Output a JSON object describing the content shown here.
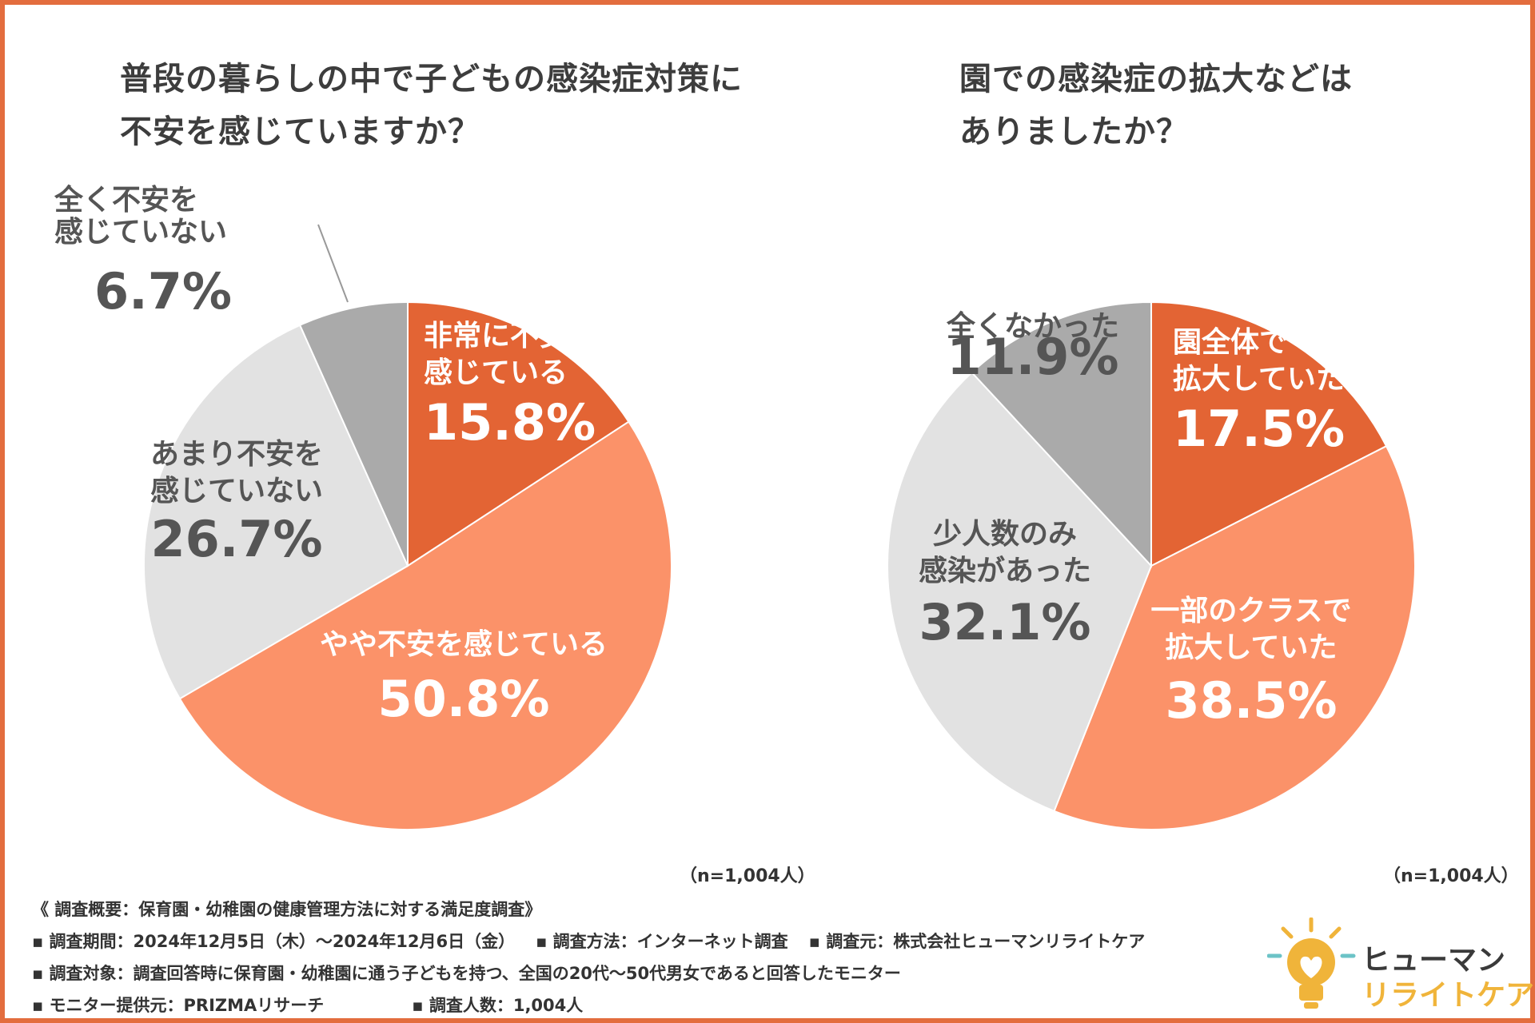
{
  "colors": {
    "border": "#e36d3e",
    "dark_orange": "#e36434",
    "light_orange": "#fb9269",
    "light_gray": "#e2e2e2",
    "mid_gray": "#aaaaaa",
    "label_dark": "#555555",
    "logo_yellow": "#f0b43a",
    "logo_teal": "#6cc3c7"
  },
  "chart_data": [
    {
      "type": "pie",
      "title_lines": [
        "普段の暮らしの中で子どもの感染症対策に",
        "不安を感じていますか？"
      ],
      "n_label": "（n=1,004人）",
      "slices": [
        {
          "label_lines": [
            "非常に不安を",
            "感じている"
          ],
          "value": 15.8,
          "value_label": "15.8%",
          "color": "#e36434",
          "text_color": "#ffffff"
        },
        {
          "label_lines": [
            "やや不安を感じている"
          ],
          "value": 50.8,
          "value_label": "50.8%",
          "color": "#fb9269",
          "text_color": "#ffffff"
        },
        {
          "label_lines": [
            "あまり不安を",
            "感じていない"
          ],
          "value": 26.7,
          "value_label": "26.7%",
          "color": "#e2e2e2",
          "text_color": "#555555"
        },
        {
          "label_lines": [
            "全く不安を",
            "感じていない"
          ],
          "value": 6.7,
          "value_label": "6.7%",
          "color": "#aaaaaa",
          "text_color": "#555555"
        }
      ]
    },
    {
      "type": "pie",
      "title_lines": [
        "園での感染症の拡大などは",
        "ありましたか？"
      ],
      "n_label": "（n=1,004人）",
      "slices": [
        {
          "label_lines": [
            "園全体で",
            "拡大していた"
          ],
          "value": 17.5,
          "value_label": "17.5%",
          "color": "#e36434",
          "text_color": "#ffffff"
        },
        {
          "label_lines": [
            "一部のクラスで",
            "拡大していた"
          ],
          "value": 38.5,
          "value_label": "38.5%",
          "color": "#fb9269",
          "text_color": "#ffffff"
        },
        {
          "label_lines": [
            "少人数のみ",
            "感染があった"
          ],
          "value": 32.1,
          "value_label": "32.1%",
          "color": "#e2e2e2",
          "text_color": "#555555"
        },
        {
          "label_lines": [
            "全くなかった"
          ],
          "value": 11.9,
          "value_label": "11.9%",
          "color": "#aaaaaa",
          "text_color": "#555555"
        }
      ]
    }
  ],
  "footer": {
    "title": "《 調査概要：保育園・幼稚園の健康管理方法に対する満足度調査》",
    "period": "▪ 調査期間：2024年12月5日（木）～2024年12月6日（金）",
    "method": "▪ 調査方法：インターネット調査",
    "source": "▪ 調査元：株式会社ヒューマンリライトケア",
    "target": "▪ 調査対象：調査回答時に保育園・幼稚園に通う子どもを持つ、全国の20代～50代男女であると回答したモニター",
    "provider": "▪ モニター提供元：PRIZMAリサーチ",
    "count": "▪ 調査人数：1,004人"
  },
  "logo": {
    "line1": "ヒューマン",
    "line2": "リライトケア",
    "icon": "lightbulb-heart-icon"
  }
}
